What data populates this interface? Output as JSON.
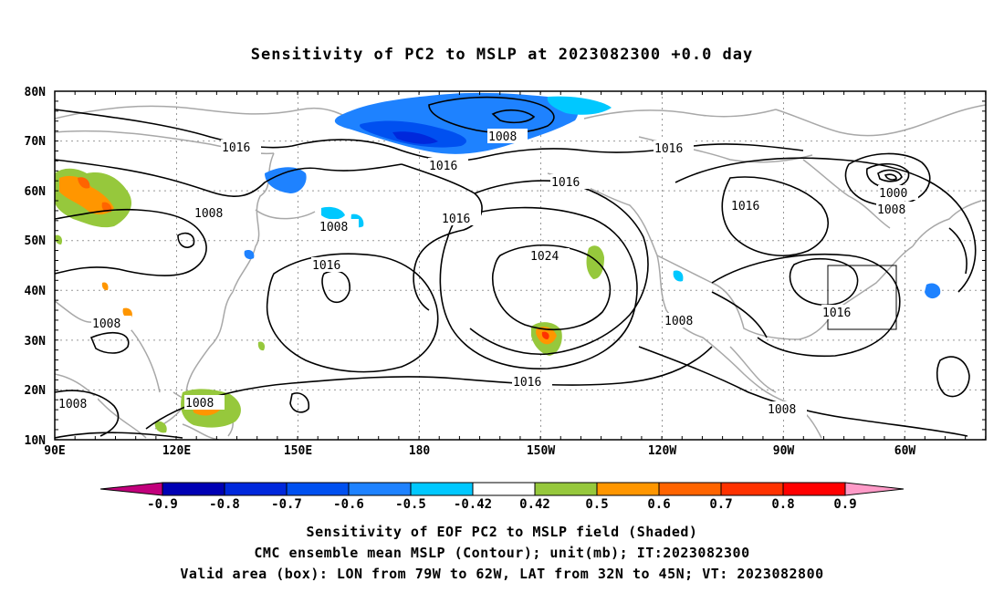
{
  "title": "Sensitivity of PC2 to MSLP at 2023082300 +0.0 day",
  "lat_labels": [
    "80N",
    "70N",
    "60N",
    "50N",
    "40N",
    "30N",
    "20N",
    "10N"
  ],
  "lon_labels": [
    "90E",
    "120E",
    "150E",
    "180",
    "150W",
    "120W",
    "90W",
    "60W"
  ],
  "contour_labels": [
    "1016",
    "1016",
    "1016",
    "1016",
    "1016",
    "1016",
    "1016",
    "1008",
    "1008",
    "1008",
    "1008",
    "1008",
    "1008",
    "1008",
    "1008",
    "1024",
    "1000",
    "1016"
  ],
  "colorbar": {
    "ticks": [
      "-0.9",
      "-0.8",
      "-0.7",
      "-0.6",
      "-0.5",
      "-0.42",
      "0.42",
      "0.5",
      "0.6",
      "0.7",
      "0.8",
      "0.9"
    ],
    "colors": [
      "#c2007c",
      "#0000b4",
      "#0028dc",
      "#0050f0",
      "#1e82ff",
      "#00c8ff",
      "#ffffff",
      "#96c83c",
      "#ff9600",
      "#ff6400",
      "#ff3200",
      "#ff0000",
      "#ff9bc8"
    ]
  },
  "captions": [
    "Sensitivity of EOF PC2 to MSLP field (Shaded)",
    "CMC ensemble mean MSLP (Contour); unit(mb); IT:2023082300",
    "Valid area (box): LON from 79W to 62W, LAT from 32N to 45N; VT: 2023082800"
  ]
}
